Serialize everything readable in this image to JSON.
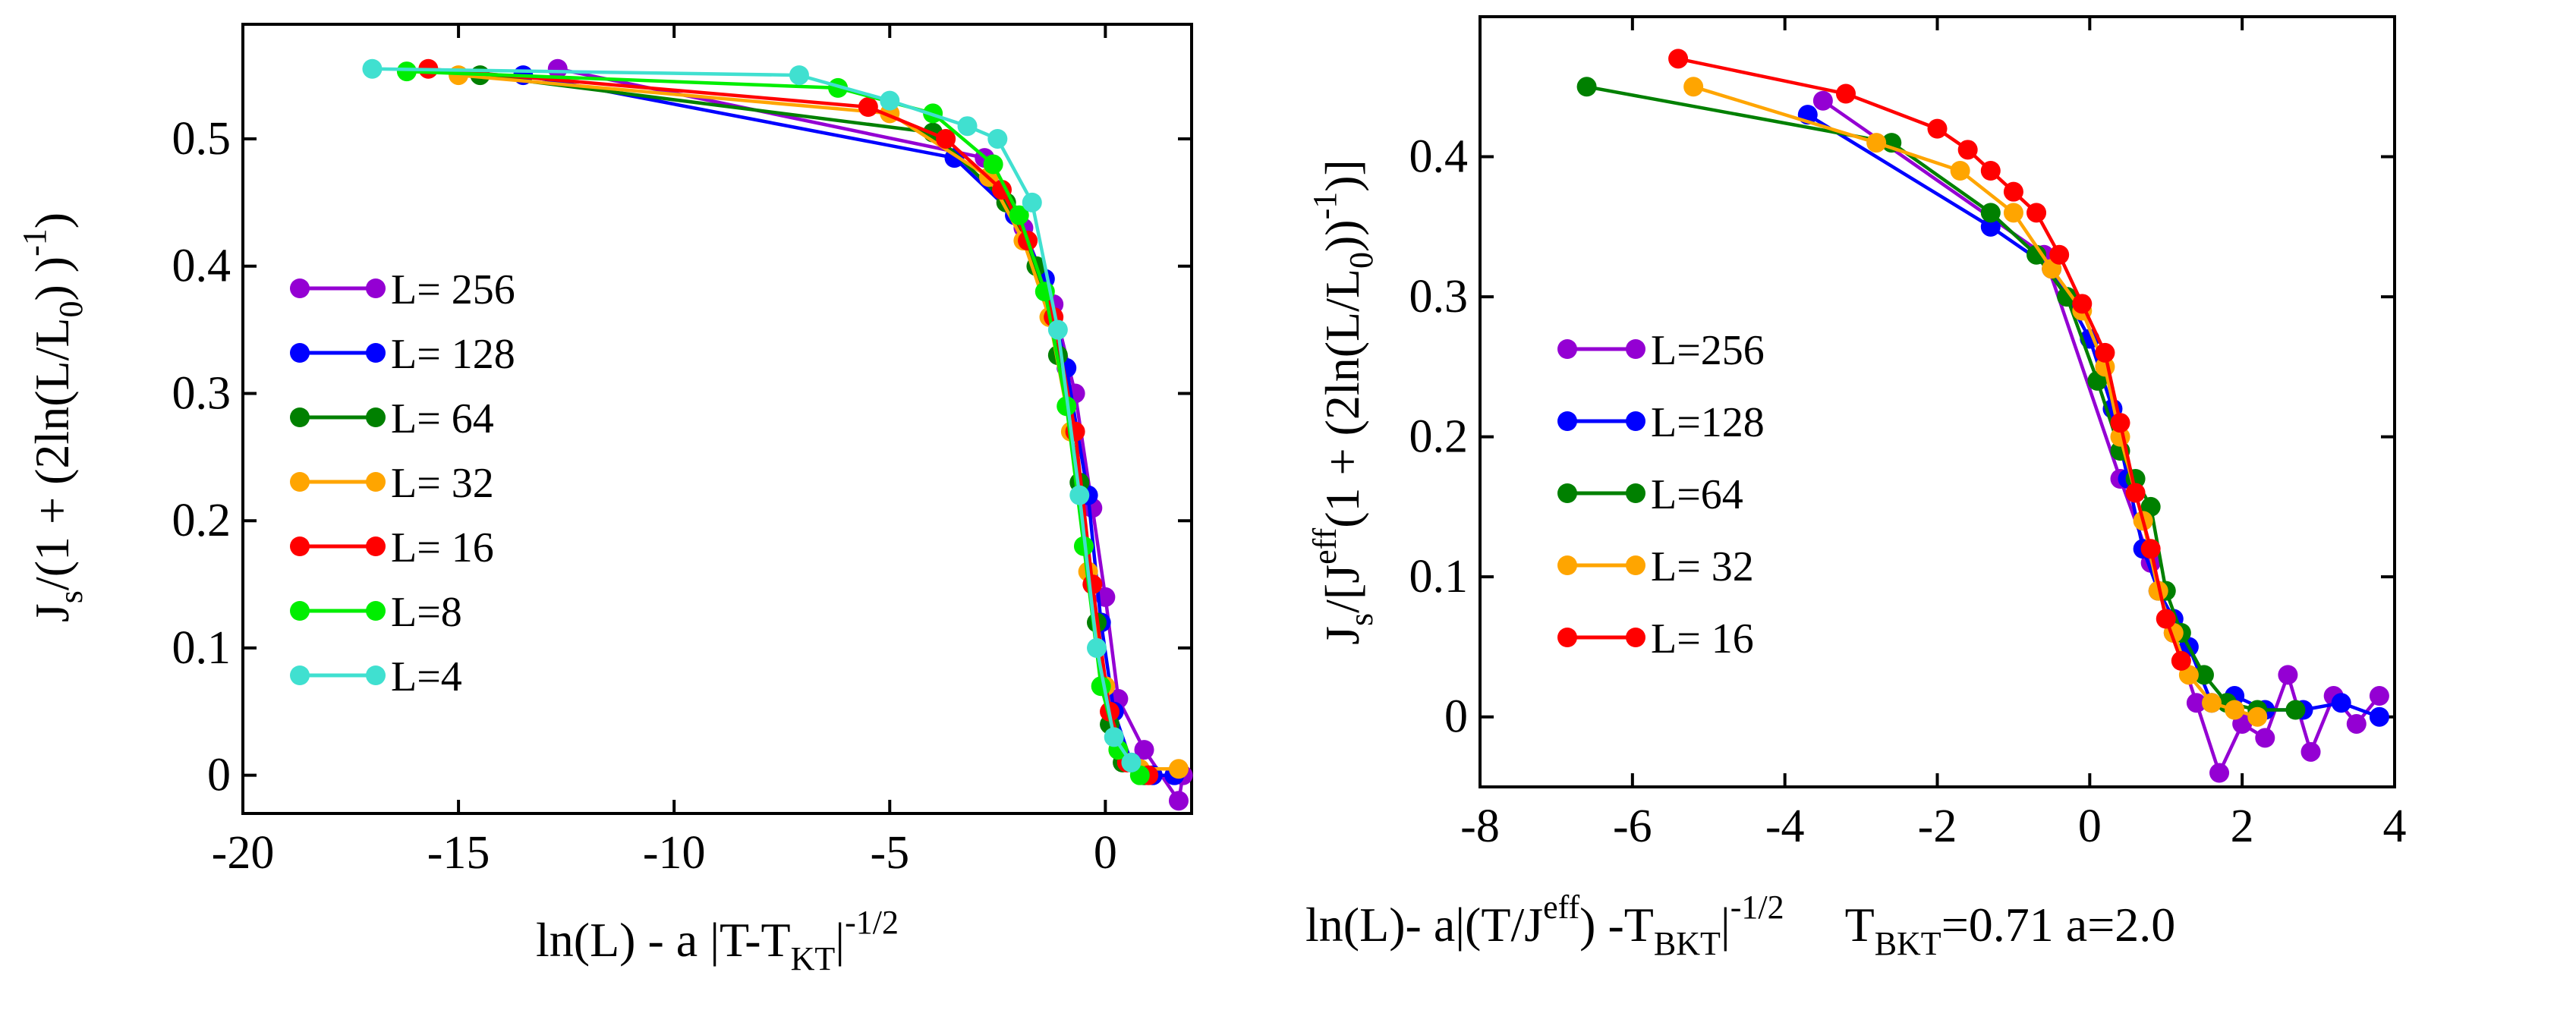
{
  "panels": [
    {
      "chart_data": {
        "type": "line",
        "xlim": [
          -20,
          2
        ],
        "ylim": [
          -0.03,
          0.59
        ],
        "xticks": [
          -20,
          -15,
          -10,
          -5,
          0
        ],
        "yticks": [
          0,
          0.1,
          0.2,
          0.3,
          0.4,
          0.5
        ],
        "ylabel": {
          "p1": "J",
          "sub1": "s",
          "p2": "/(1 + (2ln(L/L",
          "sub2": "0",
          "p3": ") )",
          "sup": "-1",
          "p4": ")"
        },
        "xlabel": {
          "p1": "ln(L) - a |T-T",
          "sub": "KT",
          "p2": "|",
          "sup": "-1/2"
        },
        "series": [
          {
            "name": "L= 256",
            "color": "#9400D3",
            "x": [
              -12.7,
              -2.8,
              -1.9,
              -1.2,
              -0.7,
              -0.3,
              0.0,
              0.3,
              0.9,
              1.7,
              1.8
            ],
            "y": [
              0.555,
              0.485,
              0.43,
              0.37,
              0.3,
              0.21,
              0.14,
              0.06,
              0.02,
              -0.02,
              0.0
            ]
          },
          {
            "name": "L= 128",
            "color": "#0000FF",
            "x": [
              -13.5,
              -3.5,
              -2.1,
              -1.4,
              -0.9,
              -0.4,
              -0.1,
              0.2,
              0.6,
              1.1,
              1.6
            ],
            "y": [
              0.55,
              0.485,
              0.44,
              0.39,
              0.32,
              0.22,
              0.12,
              0.05,
              0.01,
              0.0,
              0.0
            ]
          },
          {
            "name": "L= 64",
            "color": "#008000",
            "x": [
              -14.5,
              -4.0,
              -2.3,
              -1.6,
              -1.1,
              -0.6,
              -0.2,
              0.1,
              0.4,
              0.9
            ],
            "y": [
              0.55,
              0.505,
              0.45,
              0.4,
              0.33,
              0.23,
              0.12,
              0.04,
              0.01,
              0.0
            ]
          },
          {
            "name": "L= 32",
            "color": "#FFA500",
            "x": [
              -15.0,
              -5.0,
              -2.7,
              -1.9,
              -1.3,
              -0.8,
              -0.4,
              0.0,
              0.3,
              0.8,
              1.7
            ],
            "y": [
              0.55,
              0.52,
              0.47,
              0.42,
              0.36,
              0.27,
              0.16,
              0.07,
              0.02,
              0.005,
              0.005
            ]
          },
          {
            "name": "L= 16",
            "color": "#FF0000",
            "x": [
              -15.7,
              -5.5,
              -3.7,
              -2.4,
              -1.8,
              -1.2,
              -0.7,
              -0.3,
              0.1,
              0.5,
              1.0
            ],
            "y": [
              0.555,
              0.525,
              0.5,
              0.46,
              0.42,
              0.36,
              0.27,
              0.15,
              0.05,
              0.01,
              0.0
            ]
          },
          {
            "name": "L=8",
            "color": "#00EE00",
            "x": [
              -16.2,
              -6.2,
              -4.0,
              -2.6,
              -2.0,
              -1.4,
              -0.9,
              -0.5,
              -0.1,
              0.3,
              0.8
            ],
            "y": [
              0.553,
              0.54,
              0.52,
              0.48,
              0.44,
              0.38,
              0.29,
              0.18,
              0.07,
              0.02,
              0.0
            ]
          },
          {
            "name": "L=4",
            "color": "#40E0D0",
            "x": [
              -17.0,
              -7.1,
              -5.0,
              -3.2,
              -2.5,
              -1.7,
              -1.1,
              -0.6,
              -0.2,
              0.2,
              0.6
            ],
            "y": [
              0.555,
              0.55,
              0.53,
              0.51,
              0.5,
              0.45,
              0.35,
              0.22,
              0.1,
              0.03,
              0.01
            ]
          }
        ]
      }
    },
    {
      "chart_data": {
        "type": "line",
        "xlim": [
          -8,
          4
        ],
        "ylim": [
          -0.05,
          0.5
        ],
        "xticks": [
          -8,
          -6,
          -4,
          -2,
          0,
          2,
          4
        ],
        "yticks": [
          0,
          0.1,
          0.2,
          0.3,
          0.4
        ],
        "ylabel": {
          "p1": "J",
          "sub1": "s",
          "p2": "/[J",
          "sup1": "eff",
          "p3": "(1 + (2ln(L/L",
          "sub2": "0",
          "p4": "))",
          "sup2": "-1",
          "p5": ")]"
        },
        "xlabel": {
          "p1": "ln(L)- a|(T/J",
          "sup1": "eff",
          "p2": ") -T",
          "sub1": "BKT",
          "p3": "|",
          "sup2": "-1/2",
          "p4": "T",
          "sub2": "BKT",
          "p5": "=0.71  a=2.0"
        },
        "series": [
          {
            "name": "L=256",
            "color": "#9400D3",
            "x": [
              -3.5,
              -0.6,
              0.4,
              0.8,
              1.1,
              1.4,
              1.7,
              2.0,
              2.3,
              2.6,
              2.9,
              3.2,
              3.5,
              3.8
            ],
            "y": [
              0.44,
              0.33,
              0.17,
              0.11,
              0.06,
              0.01,
              -0.04,
              -0.005,
              -0.015,
              0.03,
              -0.025,
              0.015,
              -0.005,
              0.015
            ]
          },
          {
            "name": "L=128",
            "color": "#0000FF",
            "x": [
              -3.7,
              -1.3,
              -0.5,
              0.0,
              0.3,
              0.5,
              0.7,
              0.9,
              1.1,
              1.3,
              1.6,
              1.9,
              2.3,
              2.8,
              3.3,
              3.8
            ],
            "y": [
              0.43,
              0.35,
              0.32,
              0.27,
              0.22,
              0.17,
              0.12,
              0.09,
              0.07,
              0.05,
              0.01,
              0.015,
              0.005,
              0.005,
              0.01,
              0.0
            ]
          },
          {
            "name": "L=64",
            "color": "#008000",
            "x": [
              -6.6,
              -2.6,
              -1.3,
              -0.7,
              -0.3,
              0.1,
              0.4,
              0.6,
              0.8,
              1.0,
              1.2,
              1.5,
              1.8,
              2.2,
              2.7
            ],
            "y": [
              0.45,
              0.41,
              0.36,
              0.33,
              0.3,
              0.24,
              0.19,
              0.17,
              0.15,
              0.09,
              0.06,
              0.03,
              0.01,
              0.005,
              0.005
            ]
          },
          {
            "name": "L= 32",
            "color": "#FFA500",
            "x": [
              -5.2,
              -2.8,
              -1.7,
              -1.0,
              -0.5,
              -0.1,
              0.2,
              0.4,
              0.7,
              0.9,
              1.1,
              1.3,
              1.6,
              1.9,
              2.2
            ],
            "y": [
              0.45,
              0.41,
              0.39,
              0.36,
              0.32,
              0.29,
              0.25,
              0.2,
              0.14,
              0.09,
              0.06,
              0.03,
              0.01,
              0.005,
              0.0
            ]
          },
          {
            "name": "L= 16",
            "color": "#FF0000",
            "x": [
              -5.4,
              -3.2,
              -2.0,
              -1.6,
              -1.3,
              -1.0,
              -0.7,
              -0.4,
              -0.1,
              0.2,
              0.4,
              0.6,
              0.8,
              1.0,
              1.2
            ],
            "y": [
              0.47,
              0.445,
              0.42,
              0.405,
              0.39,
              0.375,
              0.36,
              0.33,
              0.295,
              0.26,
              0.21,
              0.16,
              0.12,
              0.07,
              0.04
            ]
          }
        ]
      }
    }
  ]
}
